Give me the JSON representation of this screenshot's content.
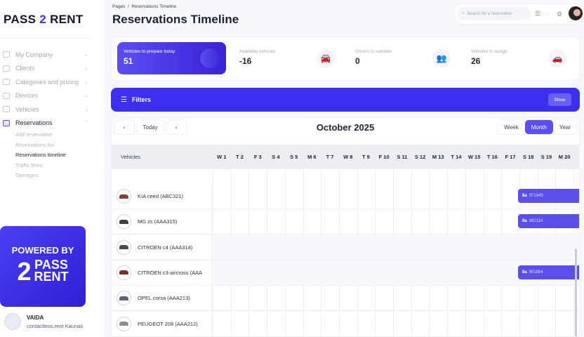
{
  "brand": {
    "logo_left": "PASS",
    "logo_mid": "2",
    "logo_right": "RENT"
  },
  "sidebar": {
    "items": [
      {
        "label": "My Company",
        "icon": "building-icon"
      },
      {
        "label": "Clients",
        "icon": "users-icon"
      },
      {
        "label": "Categories and pricing",
        "icon": "tag-icon"
      },
      {
        "label": "Devices",
        "icon": "device-icon"
      },
      {
        "label": "Vehicles",
        "icon": "car-icon"
      },
      {
        "label": "Reservations",
        "icon": "calendar-icon",
        "active": true
      }
    ],
    "subitems": [
      "Add reservation",
      "Reservations list",
      "Reservations timeline",
      "Traffic fines",
      "Damages"
    ],
    "active_sub": "Reservations timeline",
    "powered": {
      "line1": "POWERED BY",
      "line2": "PASS",
      "line3": "RENT"
    },
    "user": {
      "name": "VAIDA",
      "company": "contactless.rent Kaunas"
    }
  },
  "header": {
    "breadcrumb": "Pages  /  Reservations Timeline",
    "title": "Reservations Timeline",
    "search_placeholder": "Search for a reservation"
  },
  "stats": [
    {
      "label": "Vehicles to prepare today",
      "value": "51"
    },
    {
      "label": "Available vehicles",
      "value": "-16",
      "icon": "car-key-icon"
    },
    {
      "label": "Drivers to validate",
      "value": "0",
      "icon": "users-check-icon"
    },
    {
      "label": "Vehicles to assign",
      "value": "26",
      "icon": "car-clock-icon"
    }
  ],
  "filters": {
    "title": "Filters",
    "show": "Show"
  },
  "calendar": {
    "prev": "‹",
    "today": "Today",
    "next": "›",
    "month": "October 2025",
    "views": [
      "Week",
      "Month",
      "Year"
    ],
    "active_view": "Month",
    "vehicles_header": "Vehicles",
    "days": [
      "W 1",
      "T 2",
      "F 3",
      "S 4",
      "S 5",
      "M 6",
      "T 7",
      "W 8",
      "T 9",
      "F 10",
      "S 11",
      "S 12",
      "M 13",
      "T 14",
      "W 15",
      "T 16",
      "F 17",
      "S 18",
      "S 19",
      "M 20",
      "T"
    ],
    "rows": [
      {
        "name": "KIA ceed (ABC321)",
        "color": "#8a3a30",
        "reservation": {
          "prefix": "8a",
          "id": "971945"
        }
      },
      {
        "name": "MG zs (AAA315)",
        "color": "#3b3d42",
        "reservation": {
          "prefix": "8a",
          "id": "982114"
        }
      },
      {
        "name": "CITROEN c4 (AAA314)",
        "color": "#3f4d52"
      },
      {
        "name": "CITROEN c3-aircross (AAA",
        "color": "#7a2e2a",
        "reservation": {
          "prefix": "8a",
          "id": "901884"
        }
      },
      {
        "name": "OPEL corsa (AAA213)",
        "color": "#5b6370"
      },
      {
        "name": "PEUGEOT 208 (AAA212)",
        "color": "#8d9098"
      }
    ]
  },
  "colors": {
    "accent": "#3d2ff0",
    "bar": "#5a4fe8"
  }
}
